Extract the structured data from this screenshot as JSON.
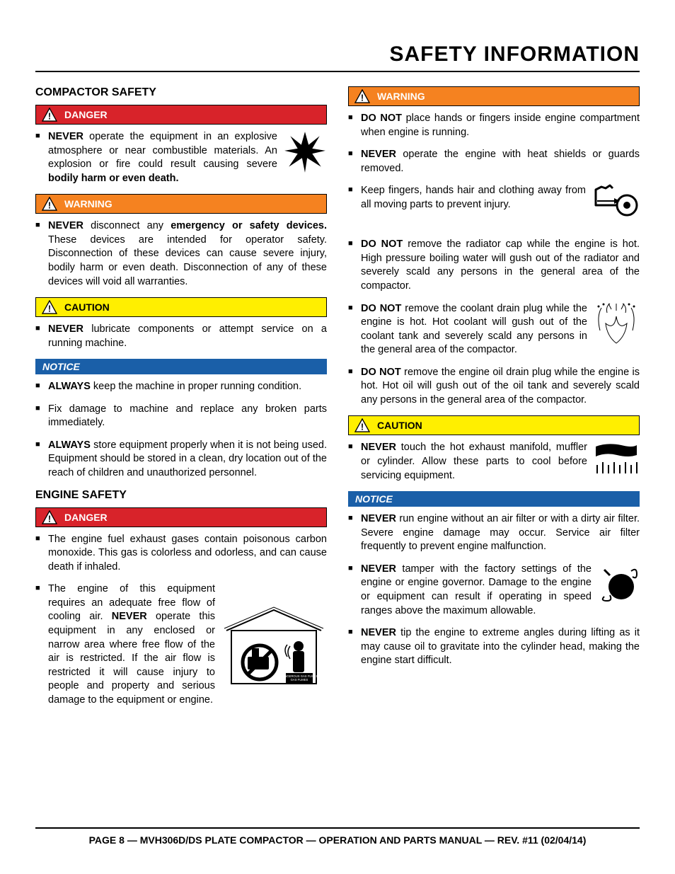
{
  "page": {
    "title": "SAFETY INFORMATION",
    "footer": "PAGE 8 — MVH306D/DS PLATE COMPACTOR — OPERATION AND PARTS MANUAL — REV. #11 (02/04/14)"
  },
  "colors": {
    "danger_bg": "#d8232a",
    "warning_bg": "#f58220",
    "caution_bg": "#ffef00",
    "notice_bg": "#1a5fa8",
    "text": "#000000",
    "alert_text_light": "#ffffff"
  },
  "labels": {
    "danger": "DANGER",
    "warning": "WARNING",
    "caution": "CAUTION",
    "notice": "NOTICE"
  },
  "left": {
    "h1": "COMPACTOR SAFETY",
    "danger_items": [
      "<b>NEVER</b> operate the equipment in an explosive atmosphere or near combustible materials. An explosion or fire could result causing severe <b>bodily harm or even death.</b>"
    ],
    "warning_items": [
      "<b>NEVER</b> disconnect any <b>emergency or safety devices.</b> These devices are intended for operator safety. Disconnection of these devices can cause severe injury, bodily harm or even death. Disconnection of any of these devices will void all warranties."
    ],
    "caution_items": [
      "<b>NEVER</b> lubricate components or attempt service on a running machine."
    ],
    "notice_items": [
      "<b>ALWAYS</b> keep the machine in proper running condition.",
      "Fix damage to machine and replace any broken parts immediately.",
      "<b>ALWAYS</b> store equipment properly when it is not being used. Equipment should be stored in a clean, dry location out of the reach of children and unauthorized personnel."
    ],
    "h2": "ENGINE SAFETY",
    "engine_danger_items": [
      "The engine fuel exhaust gases contain poisonous carbon monoxide. This gas is colorless and odorless, and can cause death if inhaled.",
      "The engine of this equipment requires an adequate free flow of cooling air. <b>NEVER</b> operate this equipment in any enclosed or narrow area where free flow of the air is restricted. If the air flow is restricted it will cause injury to people and property and serious damage to the equipment or engine."
    ]
  },
  "right": {
    "warning_items": [
      "<b>DO NOT</b> place hands or fingers inside engine compartment when engine is running.",
      "<b>NEVER</b> operate the engine with heat shields or guards removed.",
      "Keep fingers, hands hair and clothing away from all moving parts to prevent injury.",
      "<b>DO NOT</b> remove the radiator cap while the engine is hot. High pressure boiling water will gush out of the radiator and severely scald any persons in the general area of the compactor.",
      "<b>DO NOT</b> remove the coolant drain plug while the engine is hot. Hot coolant will gush out of the coolant tank and severely scald any persons in the general area of the compactor.",
      "<b>DO NOT</b> remove the engine oil drain plug while the engine is hot. Hot oil will gush out of the oil tank and severely scald any persons in the general area of the compactor."
    ],
    "caution_items": [
      "<b>NEVER</b> touch the hot exhaust manifold, muffler or cylinder. Allow these parts to cool before servicing equipment."
    ],
    "notice_items": [
      "<b>NEVER</b> run engine without an air filter or with a dirty air filter. Severe engine damage may occur. Service air filter frequently to prevent engine malfunction.",
      "<b>NEVER</b> tamper with the factory settings of the engine or engine governor. Damage to the engine or equipment can result if operating in speed ranges above the maximum allowable.",
      "<b>NEVER</b> tip the engine to extreme angles during lifting as it may cause oil to gravitate into the cylinder head, making the engine start difficult."
    ]
  },
  "icons": {
    "explosion": "explosion-icon",
    "entanglement": "hand-pulley-icon",
    "splash": "splash-icon",
    "hot": "hot-surface-icon",
    "governor": "governor-icon",
    "enclosed": "enclosed-area-icon",
    "gas_fumes_label": "DANGEROUS GAS FUMES"
  }
}
